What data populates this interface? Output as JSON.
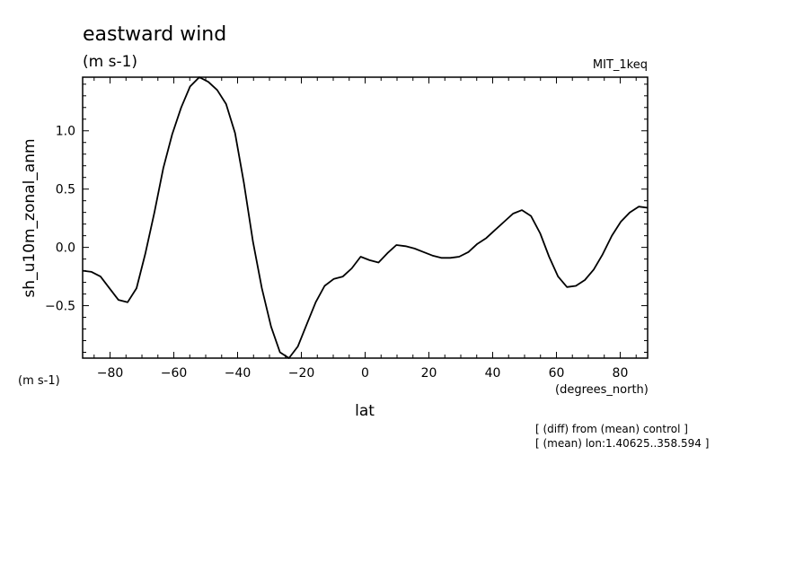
{
  "chart_data": {
    "type": "line",
    "title": "eastward wind",
    "subtitle": "(m s-1)",
    "model_label": "MIT_1keq",
    "ylabel": "sh_u10m_zonal_anm",
    "yunits": "(m s-1)",
    "xlabel": "lat",
    "xunits": "(degrees_north)",
    "notes": [
      "[ (diff) from (mean) control ]",
      "[ (mean) lon:1.40625..358.594 ]"
    ],
    "xlim": [
      -88.6,
      88.6
    ],
    "ylim": [
      -0.95,
      1.46
    ],
    "xticks": [
      -80,
      -60,
      -40,
      -20,
      0,
      20,
      40,
      60,
      80
    ],
    "xtick_labels": [
      "−80",
      "−60",
      "−40",
      "−20",
      "0",
      "20",
      "40",
      "60",
      "80"
    ],
    "yticks": [
      -0.5,
      0.0,
      0.5,
      1.0
    ],
    "ytick_labels": [
      "−0.5",
      "0.0",
      "0.5",
      "1.0"
    ],
    "grid": false,
    "series": [
      {
        "x": [
          -88.6,
          -85.8,
          -83.0,
          -80.2,
          -77.4,
          -74.5,
          -71.7,
          -68.9,
          -66.1,
          -63.3,
          -60.5,
          -57.7,
          -54.9,
          -52.0,
          -49.2,
          -46.4,
          -43.6,
          -40.8,
          -38.0,
          -35.2,
          -32.4,
          -29.5,
          -26.7,
          -23.9,
          -21.1,
          -18.3,
          -15.5,
          -12.7,
          -9.8,
          -7.0,
          -4.2,
          -1.4,
          1.4,
          4.2,
          7.0,
          9.8,
          12.7,
          15.5,
          18.3,
          21.1,
          23.9,
          26.7,
          29.5,
          32.4,
          35.2,
          38.0,
          40.8,
          43.6,
          46.4,
          49.2,
          52.0,
          54.9,
          57.7,
          60.5,
          63.3,
          66.1,
          68.9,
          71.7,
          74.5,
          77.4,
          80.2,
          83.0,
          85.8,
          88.6
        ],
        "values": [
          -0.2,
          -0.21,
          -0.25,
          -0.35,
          -0.45,
          -0.47,
          -0.35,
          -0.05,
          0.3,
          0.68,
          0.97,
          1.2,
          1.38,
          1.46,
          1.42,
          1.35,
          1.23,
          0.98,
          0.55,
          0.05,
          -0.35,
          -0.68,
          -0.9,
          -0.95,
          -0.85,
          -0.66,
          -0.47,
          -0.33,
          -0.27,
          -0.25,
          -0.18,
          -0.08,
          -0.11,
          -0.13,
          -0.05,
          0.02,
          0.01,
          -0.01,
          -0.04,
          -0.07,
          -0.09,
          -0.09,
          -0.08,
          -0.04,
          0.03,
          0.08,
          0.15,
          0.22,
          0.29,
          0.32,
          0.27,
          0.12,
          -0.08,
          -0.25,
          -0.34,
          -0.33,
          -0.28,
          -0.19,
          -0.06,
          0.1,
          0.22,
          0.3,
          0.35,
          0.34
        ]
      }
    ]
  }
}
